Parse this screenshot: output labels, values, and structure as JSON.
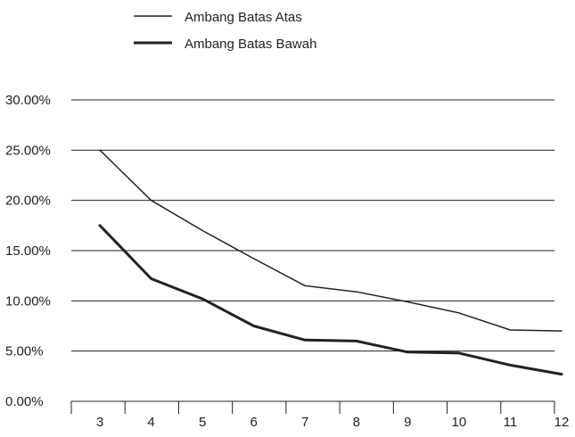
{
  "chart_data": {
    "type": "line",
    "title": "",
    "xlabel": "",
    "ylabel": "",
    "x": [
      3,
      4,
      5,
      6,
      7,
      8,
      9,
      10,
      11,
      12
    ],
    "ylim": [
      0,
      30
    ],
    "y_ticks": [
      "0.00%",
      "5.00%",
      "10.00%",
      "15.00%",
      "20.00%",
      "25.00%",
      "30.00%"
    ],
    "x_ticks": [
      "3",
      "4",
      "5",
      "6",
      "7",
      "8",
      "9",
      "10",
      "11",
      "12"
    ],
    "grid": "horizontal",
    "legend_position": "top-center",
    "series": [
      {
        "name": "Ambang Batas Atas",
        "values": [
          25.0,
          20.0,
          17.0,
          14.2,
          11.5,
          10.9,
          9.9,
          8.8,
          7.1,
          7.0
        ],
        "color": "#222222",
        "style": "thin"
      },
      {
        "name": "Ambang Batas Bawah",
        "values": [
          17.5,
          12.2,
          10.2,
          7.5,
          6.1,
          6.0,
          4.9,
          4.8,
          3.6,
          2.7
        ],
        "color": "#222222",
        "style": "thick"
      }
    ]
  }
}
